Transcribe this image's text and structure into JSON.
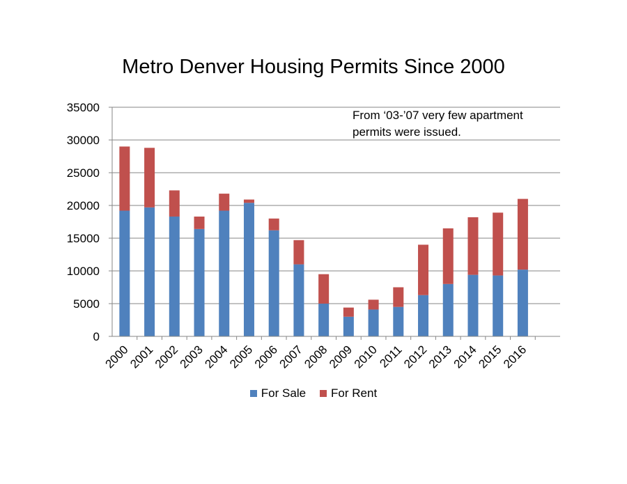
{
  "chart_data": {
    "type": "bar",
    "stacked": true,
    "title": "Metro Denver Housing Permits Since 2000",
    "annotation": "From ‘03-’07 very few apartment permits were issued.",
    "categories": [
      "2000",
      "2001",
      "2002",
      "2003",
      "2004",
      "2005",
      "2006",
      "2007",
      "2008",
      "2009",
      "2010",
      "2011",
      "2012",
      "2013",
      "2014",
      "2015",
      "2016"
    ],
    "series": [
      {
        "name": "For Sale",
        "color": "#4F81BD",
        "values": [
          19200,
          19700,
          18300,
          16400,
          19200,
          20400,
          16200,
          11000,
          5000,
          3000,
          4100,
          4500,
          6300,
          8000,
          9400,
          9300,
          10200
        ]
      },
      {
        "name": "For Rent",
        "color": "#C0504D",
        "values": [
          9800,
          9100,
          4000,
          1900,
          2600,
          500,
          1800,
          3700,
          4500,
          1400,
          1500,
          3000,
          7700,
          8500,
          8800,
          9600,
          10800
        ]
      }
    ],
    "ylim": [
      0,
      35000
    ],
    "yticks": [
      "0",
      "5000",
      "10000",
      "15000",
      "20000",
      "25000",
      "30000",
      "35000"
    ],
    "grid": true,
    "legend_position": "bottom"
  }
}
